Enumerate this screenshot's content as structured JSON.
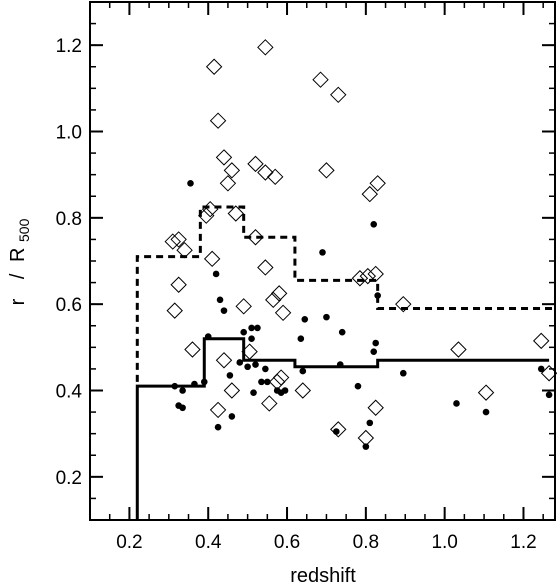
{
  "chart_data": {
    "type": "scatter",
    "title": "",
    "xlabel": "redshift",
    "ylabel_r": "r",
    "ylabel_slash": "/",
    "ylabel_R": "R",
    "ylabel_sub": "500",
    "xlim": [
      0.1,
      1.28
    ],
    "ylim": [
      0.1,
      1.3
    ],
    "xticks": [
      0.2,
      0.4,
      0.6,
      0.8,
      1.0,
      1.2
    ],
    "xtick_labels": [
      "0.2",
      "0.4",
      "0.6",
      "0.8",
      "1.0",
      "1.2"
    ],
    "yticks": [
      0.2,
      0.4,
      0.6,
      0.8,
      1.0,
      1.2
    ],
    "ytick_labels": [
      "0.2",
      "0.4",
      "0.6",
      "0.8",
      "1.0",
      "1.2"
    ],
    "x_minor_step": 0.05,
    "y_minor_step": 0.05,
    "grid": false,
    "series": [
      {
        "marker": "open-diamond",
        "points": [
          [
            0.415,
            1.15
          ],
          [
            0.545,
            1.195
          ],
          [
            0.685,
            1.12
          ],
          [
            0.73,
            1.085
          ],
          [
            0.425,
            1.025
          ],
          [
            0.44,
            0.94
          ],
          [
            0.52,
            0.925
          ],
          [
            0.46,
            0.91
          ],
          [
            0.545,
            0.905
          ],
          [
            0.57,
            0.895
          ],
          [
            0.7,
            0.91
          ],
          [
            0.45,
            0.88
          ],
          [
            0.83,
            0.88
          ],
          [
            0.81,
            0.855
          ],
          [
            0.405,
            0.82
          ],
          [
            0.395,
            0.805
          ],
          [
            0.47,
            0.81
          ],
          [
            0.52,
            0.755
          ],
          [
            0.31,
            0.745
          ],
          [
            0.325,
            0.75
          ],
          [
            0.34,
            0.725
          ],
          [
            0.41,
            0.705
          ],
          [
            0.545,
            0.685
          ],
          [
            0.325,
            0.645
          ],
          [
            0.565,
            0.61
          ],
          [
            0.58,
            0.625
          ],
          [
            0.59,
            0.58
          ],
          [
            0.49,
            0.595
          ],
          [
            0.315,
            0.585
          ],
          [
            0.785,
            0.66
          ],
          [
            0.805,
            0.665
          ],
          [
            0.825,
            0.67
          ],
          [
            0.895,
            0.6
          ],
          [
            0.36,
            0.495
          ],
          [
            0.505,
            0.49
          ],
          [
            0.44,
            0.47
          ],
          [
            0.46,
            0.4
          ],
          [
            0.575,
            0.42
          ],
          [
            0.585,
            0.43
          ],
          [
            0.555,
            0.37
          ],
          [
            0.64,
            0.4
          ],
          [
            0.425,
            0.355
          ],
          [
            0.73,
            0.31
          ],
          [
            0.8,
            0.29
          ],
          [
            0.825,
            0.36
          ],
          [
            1.035,
            0.495
          ],
          [
            1.105,
            0.395
          ],
          [
            1.245,
            0.515
          ],
          [
            1.265,
            0.44
          ]
        ]
      },
      {
        "marker": "filled-circle",
        "points": [
          [
            0.355,
            0.88
          ],
          [
            0.82,
            0.785
          ],
          [
            0.69,
            0.72
          ],
          [
            0.42,
            0.67
          ],
          [
            0.43,
            0.61
          ],
          [
            0.83,
            0.62
          ],
          [
            0.7,
            0.57
          ],
          [
            0.44,
            0.585
          ],
          [
            0.645,
            0.565
          ],
          [
            0.51,
            0.545
          ],
          [
            0.525,
            0.545
          ],
          [
            0.4,
            0.525
          ],
          [
            0.49,
            0.535
          ],
          [
            0.51,
            0.52
          ],
          [
            0.635,
            0.52
          ],
          [
            0.74,
            0.535
          ],
          [
            0.825,
            0.51
          ],
          [
            0.315,
            0.41
          ],
          [
            0.335,
            0.4
          ],
          [
            0.365,
            0.415
          ],
          [
            0.39,
            0.42
          ],
          [
            0.455,
            0.435
          ],
          [
            0.48,
            0.465
          ],
          [
            0.5,
            0.455
          ],
          [
            0.52,
            0.46
          ],
          [
            0.545,
            0.45
          ],
          [
            0.535,
            0.42
          ],
          [
            0.515,
            0.395
          ],
          [
            0.55,
            0.42
          ],
          [
            0.575,
            0.4
          ],
          [
            0.585,
            0.395
          ],
          [
            0.595,
            0.4
          ],
          [
            0.64,
            0.445
          ],
          [
            0.735,
            0.46
          ],
          [
            0.78,
            0.41
          ],
          [
            0.82,
            0.49
          ],
          [
            0.895,
            0.44
          ],
          [
            0.325,
            0.365
          ],
          [
            0.335,
            0.36
          ],
          [
            0.425,
            0.315
          ],
          [
            0.46,
            0.34
          ],
          [
            0.725,
            0.305
          ],
          [
            0.8,
            0.27
          ],
          [
            0.81,
            0.325
          ],
          [
            1.03,
            0.37
          ],
          [
            1.105,
            0.35
          ],
          [
            1.245,
            0.45
          ],
          [
            1.265,
            0.39
          ]
        ]
      }
    ],
    "lines": [
      {
        "style": "solid",
        "steps": [
          {
            "x0": 0.22,
            "x1": 0.39,
            "y": 0.41
          },
          {
            "x0": 0.39,
            "x1": 0.49,
            "y": 0.52
          },
          {
            "x0": 0.49,
            "x1": 0.62,
            "y": 0.47
          },
          {
            "x0": 0.62,
            "x1": 0.83,
            "y": 0.455
          },
          {
            "x0": 0.83,
            "x1": 1.265,
            "y": 0.47
          }
        ],
        "lead_in_from": 0.1
      },
      {
        "style": "dashed",
        "steps": [
          {
            "x0": 0.22,
            "x1": 0.38,
            "y": 0.71
          },
          {
            "x0": 0.38,
            "x1": 0.49,
            "y": 0.825
          },
          {
            "x0": 0.49,
            "x1": 0.62,
            "y": 0.755
          },
          {
            "x0": 0.62,
            "x1": 0.83,
            "y": 0.655
          },
          {
            "x0": 0.83,
            "x1": 1.28,
            "y": 0.59
          }
        ],
        "lead_in_from": 0.42
      }
    ]
  }
}
